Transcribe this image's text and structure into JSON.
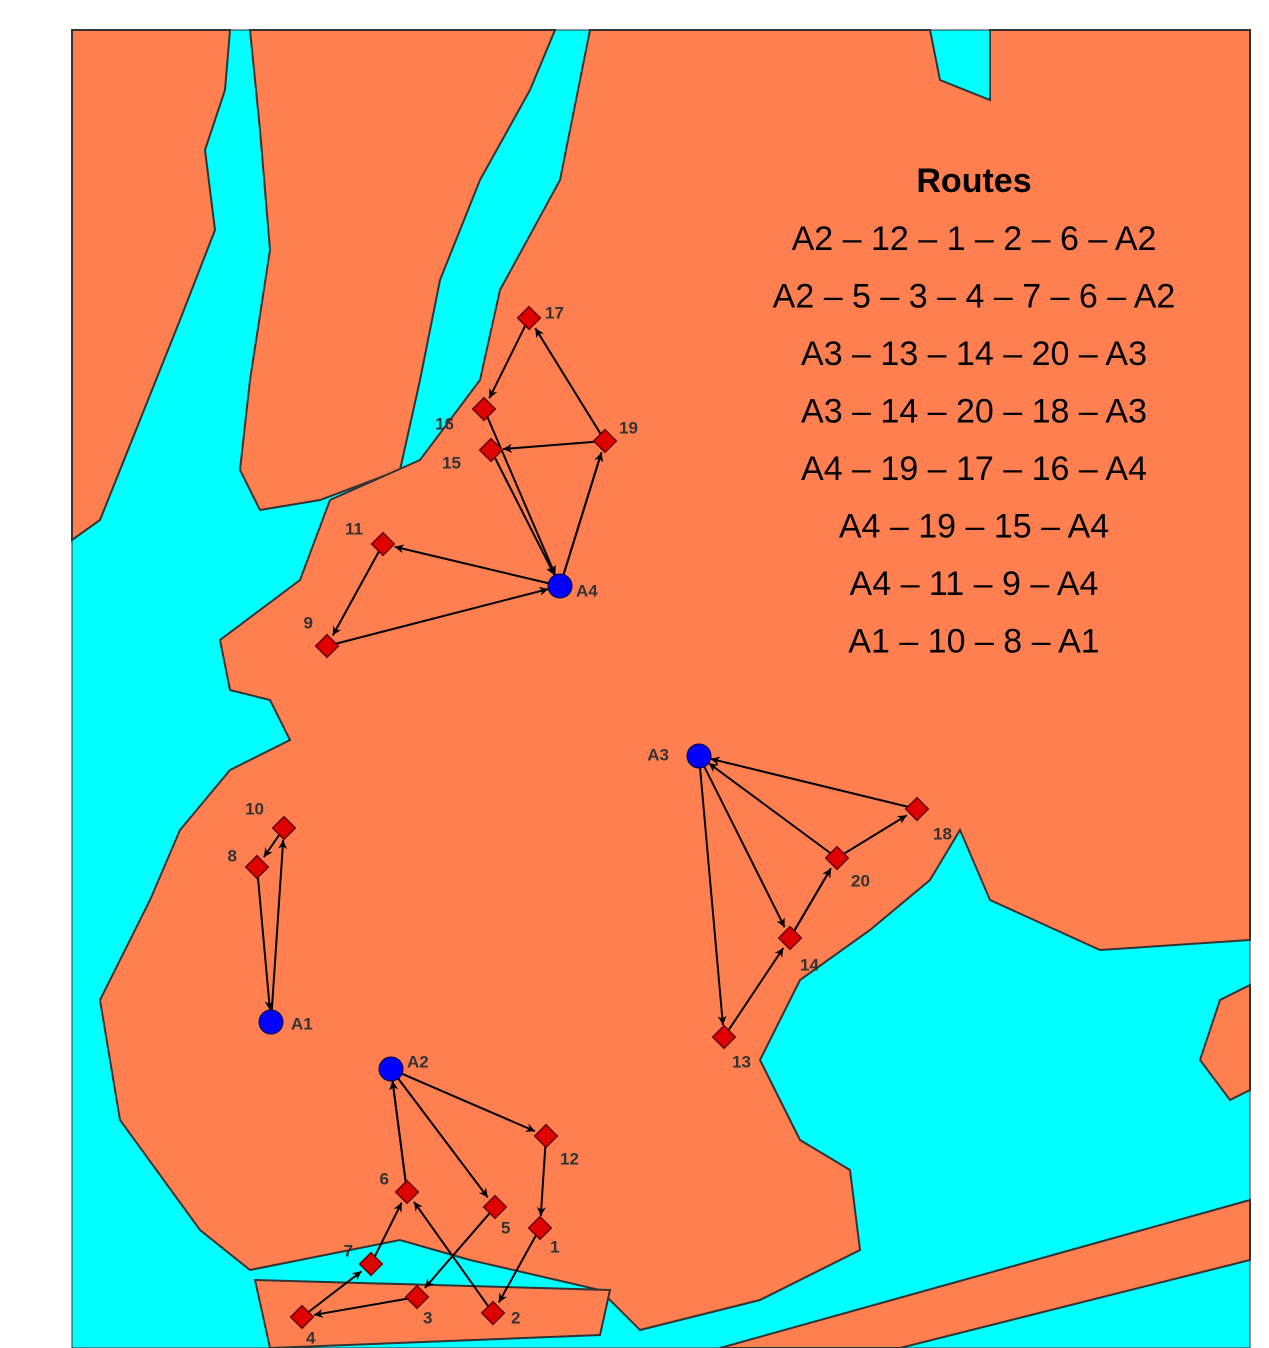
{
  "legend": {
    "title": "Routes",
    "routes": [
      "A2 – 12 – 1 – 2 – 6 – A2",
      "A2 – 5 – 3 – 4 – 7 – 6 – A2",
      "A3 – 13 – 14 – 20 – A3",
      "A3 – 14 – 20 – 18 – A3",
      "A4 – 19 – 17 – 16 – A4",
      "A4 – 19 – 15 – A4",
      "A4 – 11 – 9 – A4",
      "A1 – 10 – 8 – A1"
    ]
  },
  "depots": [
    "A1",
    "A2",
    "A3",
    "A4"
  ],
  "customers": [
    "1",
    "2",
    "3",
    "4",
    "5",
    "6",
    "7",
    "8",
    "9",
    "10",
    "11",
    "12",
    "13",
    "14",
    "15",
    "16",
    "17",
    "18",
    "19",
    "20"
  ]
}
